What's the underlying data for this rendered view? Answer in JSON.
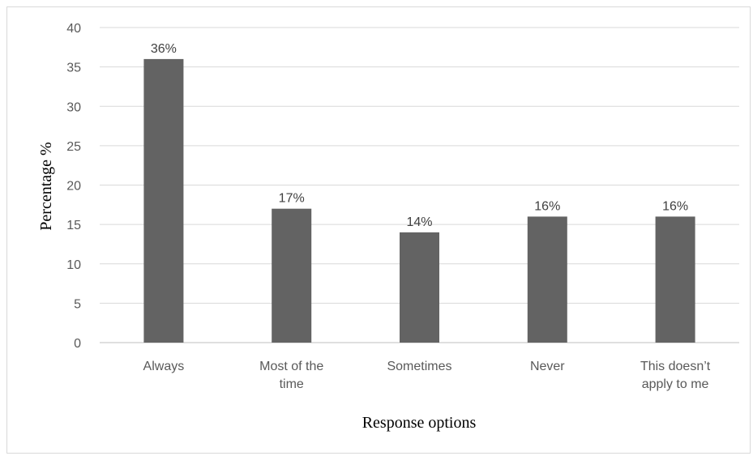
{
  "chart_data": {
    "type": "bar",
    "categories": [
      [
        "Always"
      ],
      [
        "Most of the",
        "time"
      ],
      [
        "Sometimes"
      ],
      [
        "Never"
      ],
      [
        "This doesn’t",
        "apply to me"
      ]
    ],
    "values": [
      36,
      17,
      14,
      16,
      16
    ],
    "data_labels": [
      "36%",
      "17%",
      "14%",
      "16%",
      "16%"
    ],
    "title": "",
    "xlabel": "Response options",
    "ylabel": "Percentage %",
    "ylim": [
      0,
      40
    ],
    "yticks": [
      0,
      5,
      10,
      15,
      20,
      25,
      30,
      35,
      40
    ],
    "grid": true,
    "legend": "none",
    "colors": {
      "bar": "#636363",
      "grid": "#d9d9d9",
      "axis": "#bfbfbf"
    }
  }
}
